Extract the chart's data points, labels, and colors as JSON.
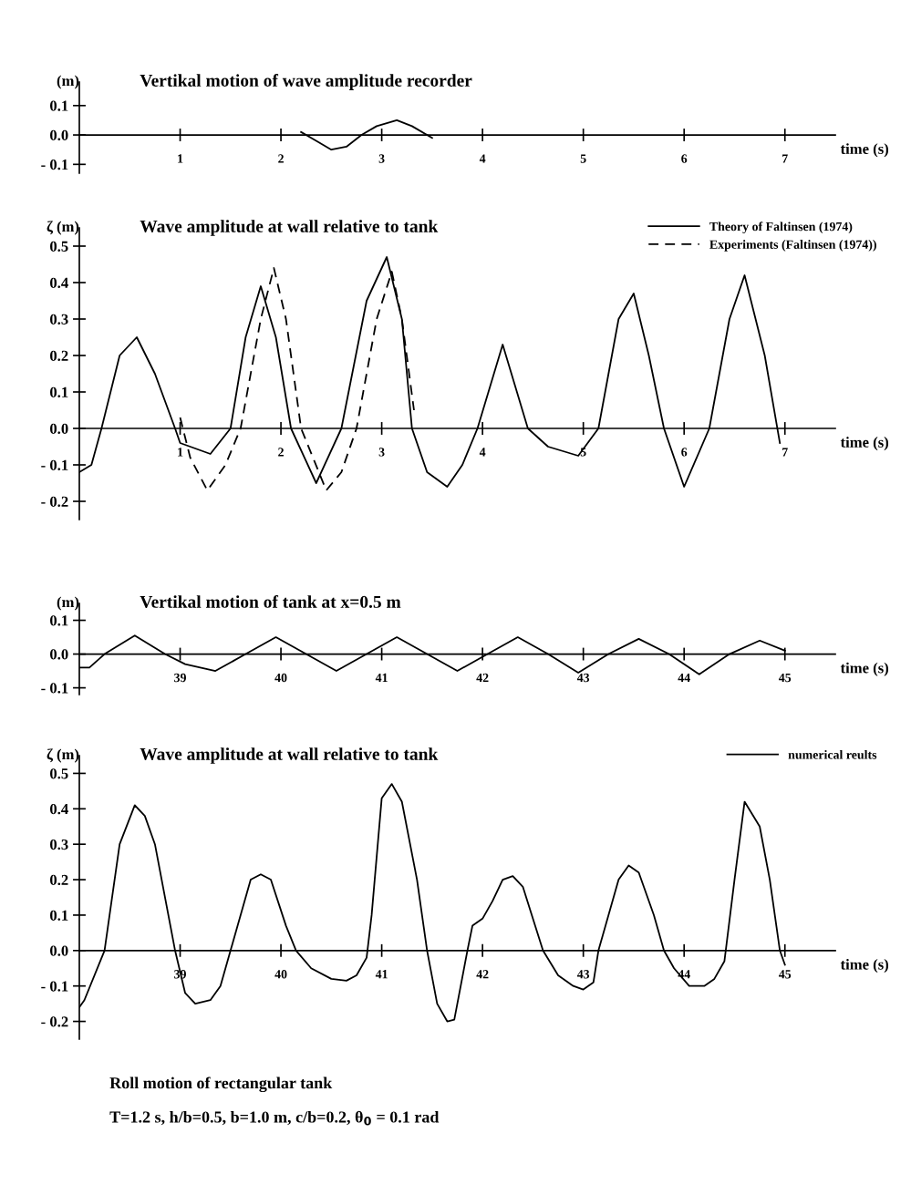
{
  "chart_data": [
    {
      "type": "line",
      "title": "Vertikal motion of wave amplitude recorder",
      "xlabel": "time (s)",
      "ylabel": "(m)",
      "xlim": [
        0,
        7.5
      ],
      "ylim": [
        -0.13,
        0.18
      ],
      "xticks": [
        1,
        2,
        3,
        4,
        5,
        6,
        7
      ],
      "yticks": [
        {
          "value": -0.1,
          "label": "- 0.1"
        },
        {
          "value": 0,
          "label": "0.0"
        },
        {
          "value": 0.1,
          "label": "0.1"
        }
      ],
      "grid": false,
      "legend": false,
      "series": [
        {
          "color": "#000000",
          "x": [
            2.2,
            2.35,
            2.5,
            2.65,
            2.8,
            2.95,
            3.15,
            3.3,
            3.5
          ],
          "values": [
            0.01,
            -0.02,
            -0.05,
            -0.04,
            0.0,
            0.03,
            0.05,
            0.03,
            -0.01
          ]
        }
      ]
    },
    {
      "type": "line",
      "title": "Wave amplitude at wall relative to tank",
      "xlabel": "time (s)",
      "ylabel": "ζ (m)",
      "xlim": [
        0,
        7.5
      ],
      "ylim": [
        -0.25,
        0.55
      ],
      "xticks": [
        1,
        2,
        3,
        4,
        5,
        6,
        7
      ],
      "yticks": [
        {
          "value": -0.2,
          "label": "- 0.2"
        },
        {
          "value": -0.1,
          "label": "- 0.1"
        },
        {
          "value": 0,
          "label": "0.0"
        },
        {
          "value": 0.1,
          "label": "0.1"
        },
        {
          "value": 0.2,
          "label": "0.2"
        },
        {
          "value": 0.3,
          "label": "0.3"
        },
        {
          "value": 0.4,
          "label": "0.4"
        },
        {
          "value": 0.5,
          "label": "0.5"
        }
      ],
      "grid": false,
      "legend": "top right",
      "series": [
        {
          "name": "Theory of Faltinsen (1974)",
          "color": "#000000",
          "line_style": "solid",
          "x": [
            0,
            0.12,
            0.22,
            0.4,
            0.57,
            0.75,
            0.95,
            1.0,
            1.3,
            1.5,
            1.65,
            1.8,
            1.95,
            2.1,
            2.35,
            2.6,
            2.85,
            3.05,
            3.2,
            3.3,
            3.45,
            3.65,
            3.8,
            3.95,
            4.2,
            4.45,
            4.65,
            4.95,
            5.15,
            5.35,
            5.5,
            5.65,
            5.8,
            6.0,
            6.25,
            6.45,
            6.6,
            6.8,
            6.95
          ],
          "values": [
            -0.12,
            -0.1,
            0.0,
            0.2,
            0.25,
            0.15,
            0.0,
            -0.04,
            -0.07,
            0.0,
            0.25,
            0.39,
            0.25,
            0.0,
            -0.15,
            0.0,
            0.35,
            0.47,
            0.3,
            0.0,
            -0.12,
            -0.16,
            -0.1,
            0.0,
            0.23,
            0.0,
            -0.05,
            -0.075,
            0.0,
            0.3,
            0.37,
            0.2,
            0.0,
            -0.16,
            0.0,
            0.3,
            0.42,
            0.2,
            -0.04
          ]
        },
        {
          "name": "Experiments (Faltinsen (1974))",
          "color": "#000000",
          "line_style": "dashed",
          "x": [
            1.0,
            1.1,
            1.27,
            1.45,
            1.6,
            1.8,
            1.93,
            2.05,
            2.2,
            2.45,
            2.6,
            2.75,
            2.95,
            3.1,
            3.2,
            3.32
          ],
          "values": [
            0.03,
            -0.08,
            -0.17,
            -0.1,
            0.0,
            0.3,
            0.44,
            0.3,
            0.0,
            -0.17,
            -0.12,
            0.0,
            0.3,
            0.43,
            0.3,
            0.05
          ]
        }
      ]
    },
    {
      "type": "line",
      "title": "Vertikal motion of tank at x=0.5 m",
      "xlabel": "time (s)",
      "ylabel": "(m)",
      "xlim": [
        38,
        45.5
      ],
      "ylim": [
        -0.12,
        0.15
      ],
      "xticks": [
        39,
        40,
        41,
        42,
        43,
        44,
        45
      ],
      "yticks": [
        {
          "value": -0.1,
          "label": "- 0.1"
        },
        {
          "value": 0,
          "label": "0.0"
        },
        {
          "value": 0.1,
          "label": "0.1"
        }
      ],
      "grid": false,
      "legend": false,
      "series": [
        {
          "color": "#000000",
          "x": [
            38.0,
            38.1,
            38.25,
            38.55,
            38.85,
            39.05,
            39.35,
            39.65,
            39.95,
            40.25,
            40.55,
            40.85,
            41.15,
            41.45,
            41.75,
            42.05,
            42.35,
            42.65,
            42.95,
            43.25,
            43.55,
            43.85,
            44.15,
            44.45,
            44.75,
            45.0
          ],
          "values": [
            -0.04,
            -0.04,
            0.0,
            0.055,
            0.0,
            -0.03,
            -0.05,
            0.0,
            0.05,
            0.0,
            -0.05,
            0.0,
            0.05,
            0.0,
            -0.05,
            0.0,
            0.05,
            0.0,
            -0.055,
            0.0,
            0.045,
            0.0,
            -0.06,
            0.0,
            0.04,
            0.01
          ]
        }
      ]
    },
    {
      "type": "line",
      "title": "Wave amplitude at wall relative to tank",
      "xlabel": "time (s)",
      "ylabel": "ζ (m)",
      "xlim": [
        38,
        45.5
      ],
      "ylim": [
        -0.25,
        0.55
      ],
      "xticks": [
        39,
        40,
        41,
        42,
        43,
        44,
        45
      ],
      "yticks": [
        {
          "value": -0.2,
          "label": "- 0.2"
        },
        {
          "value": -0.1,
          "label": "- 0.1"
        },
        {
          "value": 0,
          "label": "0.0"
        },
        {
          "value": 0.1,
          "label": "0.1"
        },
        {
          "value": 0.2,
          "label": "0.2"
        },
        {
          "value": 0.3,
          "label": "0.3"
        },
        {
          "value": 0.4,
          "label": "0.4"
        },
        {
          "value": 0.5,
          "label": "0.5"
        }
      ],
      "grid": false,
      "legend": "top right",
      "annotations": [
        "Roll motion of rectangular tank",
        "T=1.2 s, h/b=0.5, b=1.0 m, c/b=0.2, θ$_{0}$ = 0.1 rad"
      ],
      "series": [
        {
          "name": "numerical reults",
          "color": "#000000",
          "line_style": "solid",
          "x": [
            38.0,
            38.05,
            38.25,
            38.4,
            38.55,
            38.65,
            38.75,
            38.95,
            39.05,
            39.15,
            39.3,
            39.4,
            39.5,
            39.7,
            39.8,
            39.9,
            40.05,
            40.15,
            40.3,
            40.5,
            40.65,
            40.75,
            40.85,
            40.9,
            41.0,
            41.1,
            41.2,
            41.35,
            41.45,
            41.55,
            41.65,
            41.72,
            41.85,
            41.9,
            42.0,
            42.1,
            42.2,
            42.3,
            42.4,
            42.6,
            42.75,
            42.9,
            43.0,
            43.1,
            43.15,
            43.35,
            43.45,
            43.55,
            43.7,
            43.8,
            43.9,
            44.05,
            44.2,
            44.3,
            44.4,
            44.5,
            44.6,
            44.75,
            44.85,
            44.95,
            45.0
          ],
          "values": [
            -0.16,
            -0.14,
            0.0,
            0.3,
            0.41,
            0.38,
            0.3,
            0.0,
            -0.12,
            -0.15,
            -0.14,
            -0.1,
            0.0,
            0.2,
            0.215,
            0.2,
            0.07,
            0.0,
            -0.05,
            -0.08,
            -0.085,
            -0.07,
            -0.02,
            0.1,
            0.43,
            0.47,
            0.42,
            0.2,
            0.0,
            -0.15,
            -0.2,
            -0.195,
            0.0,
            0.07,
            0.09,
            0.14,
            0.2,
            0.21,
            0.18,
            0.0,
            -0.07,
            -0.1,
            -0.11,
            -0.09,
            0.0,
            0.2,
            0.24,
            0.22,
            0.1,
            0.0,
            -0.05,
            -0.1,
            -0.1,
            -0.08,
            -0.03,
            0.2,
            0.42,
            0.35,
            0.2,
            0.0,
            -0.04
          ]
        }
      ]
    }
  ]
}
